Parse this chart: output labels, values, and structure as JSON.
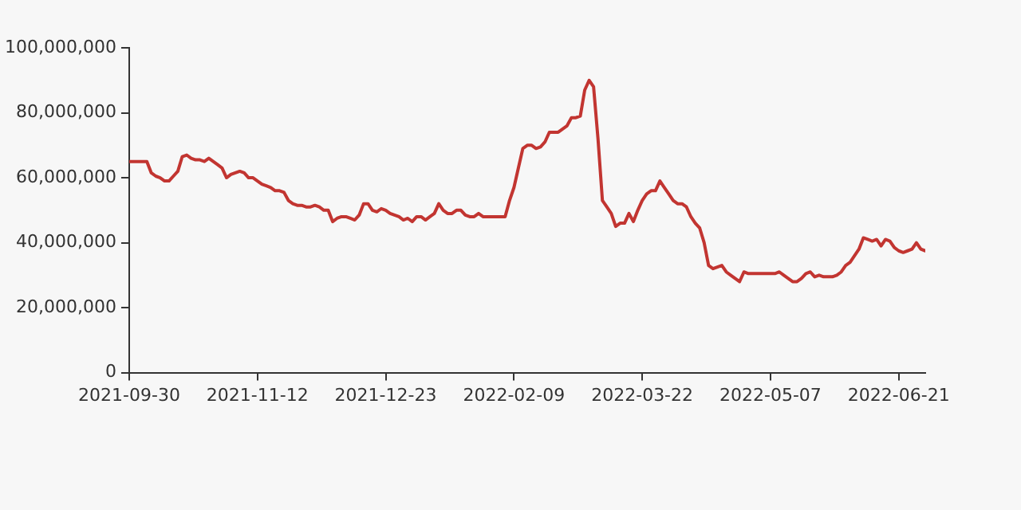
{
  "chart_data": {
    "type": "line",
    "marker": "none",
    "grid": false,
    "legend": false,
    "categories": [
      "2021-09-30",
      null,
      null,
      null,
      null,
      null,
      null,
      null,
      null,
      null,
      null,
      null,
      null,
      null,
      null,
      null,
      null,
      null,
      null,
      null,
      null,
      null,
      null,
      null,
      null,
      null,
      null,
      null,
      null,
      "2021-11-12",
      null,
      null,
      null,
      null,
      null,
      null,
      null,
      null,
      null,
      null,
      null,
      null,
      null,
      null,
      null,
      null,
      null,
      null,
      null,
      null,
      null,
      null,
      null,
      null,
      null,
      null,
      null,
      null,
      "2021-12-23",
      null,
      null,
      null,
      null,
      null,
      null,
      null,
      null,
      null,
      null,
      null,
      null,
      null,
      null,
      null,
      null,
      null,
      null,
      null,
      null,
      null,
      null,
      null,
      null,
      null,
      null,
      null,
      null,
      "2022-02-09",
      null,
      null,
      null,
      null,
      null,
      null,
      null,
      null,
      null,
      null,
      null,
      null,
      null,
      null,
      null,
      null,
      null,
      null,
      null,
      null,
      null,
      null,
      null,
      null,
      null,
      null,
      null,
      null,
      "2022-03-22",
      null,
      null,
      null,
      null,
      null,
      null,
      null,
      null,
      null,
      null,
      null,
      null,
      null,
      null,
      null,
      null,
      null,
      null,
      null,
      null,
      null,
      null,
      null,
      null,
      null,
      null,
      null,
      null,
      "2022-05-07",
      null,
      null,
      null,
      null,
      null,
      null,
      null,
      null,
      null,
      null,
      null,
      null,
      null,
      null,
      null,
      null,
      null,
      null,
      null,
      null,
      null,
      null,
      null,
      null,
      null,
      null,
      null,
      null,
      "2022-06-21",
      null,
      null,
      null,
      null,
      null,
      null
    ],
    "series": [
      {
        "color": "#c23531",
        "values": [
          65000000,
          65000000,
          65000000,
          65000000,
          65000000,
          61500000,
          60500000,
          60000000,
          59000000,
          59000000,
          60500000,
          62000000,
          66500000,
          67000000,
          66000000,
          65500000,
          65500000,
          65000000,
          66000000,
          65000000,
          64000000,
          63000000,
          60000000,
          61000000,
          61500000,
          62000000,
          61500000,
          60000000,
          60000000,
          59000000,
          58000000,
          57500000,
          57000000,
          56000000,
          56000000,
          55500000,
          53000000,
          52000000,
          51500000,
          51500000,
          51000000,
          51000000,
          51500000,
          51000000,
          50000000,
          50000000,
          46500000,
          47500000,
          48000000,
          48000000,
          47500000,
          47000000,
          48500000,
          52000000,
          52000000,
          50000000,
          49500000,
          50500000,
          50000000,
          49000000,
          48500000,
          48000000,
          47000000,
          47500000,
          46500000,
          48000000,
          48000000,
          47000000,
          48000000,
          49000000,
          52000000,
          50000000,
          49000000,
          49000000,
          50000000,
          50000000,
          48500000,
          48000000,
          48000000,
          49000000,
          48000000,
          48000000,
          48000000,
          48000000,
          48000000,
          48000000,
          53000000,
          57000000,
          63000000,
          69000000,
          70000000,
          70000000,
          69000000,
          69500000,
          71000000,
          74000000,
          74000000,
          74000000,
          75000000,
          76000000,
          78500000,
          78500000,
          79000000,
          87000000,
          90000000,
          88000000,
          72000000,
          53000000,
          51000000,
          49000000,
          45000000,
          46000000,
          46000000,
          49000000,
          46500000,
          50000000,
          53000000,
          55000000,
          56000000,
          56000000,
          59000000,
          57000000,
          55000000,
          53000000,
          52000000,
          52000000,
          51000000,
          48000000,
          46000000,
          44500000,
          40000000,
          33000000,
          32000000,
          32500000,
          33000000,
          31000000,
          30000000,
          29000000,
          28000000,
          31000000,
          30500000,
          30500000,
          30500000,
          30500000,
          30500000,
          30500000,
          30500000,
          31000000,
          30000000,
          29000000,
          28000000,
          28000000,
          29000000,
          30500000,
          31000000,
          29500000,
          30000000,
          29500000,
          29500000,
          29500000,
          30000000,
          31000000,
          33000000,
          34000000,
          36000000,
          38000000,
          41500000,
          41000000,
          40500000,
          41000000,
          39000000,
          41000000,
          40500000,
          38500000,
          37500000,
          37000000,
          37500000,
          38000000,
          40000000,
          38000000,
          37500000
        ]
      }
    ],
    "ylim": [
      0,
      100000000
    ],
    "yticks": [
      {
        "value": 0,
        "label": "0"
      },
      {
        "value": 20000000,
        "label": "20,000,000"
      },
      {
        "value": 40000000,
        "label": "40,000,000"
      },
      {
        "value": 60000000,
        "label": "60,000,000"
      },
      {
        "value": 80000000,
        "label": "80,000,000"
      },
      {
        "value": 100000000,
        "label": "100,000,000"
      }
    ]
  }
}
